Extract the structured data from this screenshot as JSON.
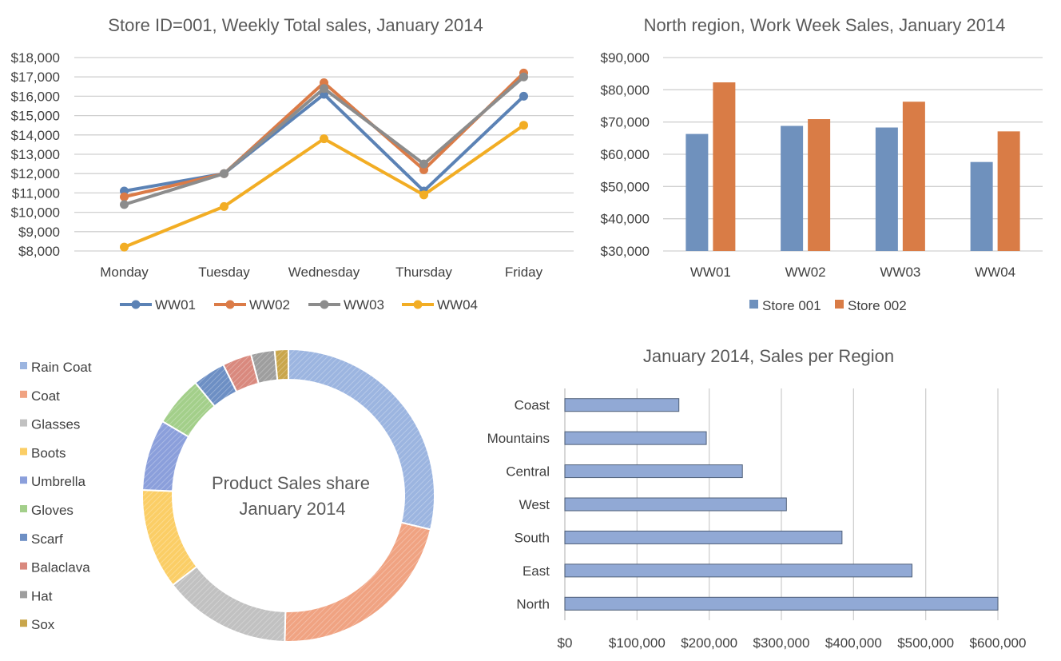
{
  "chart_data": [
    {
      "type": "line",
      "title": "Store ID=001, Weekly Total sales, January 2014",
      "categories": [
        "Monday",
        "Tuesday",
        "Wednesday",
        "Thursday",
        "Friday"
      ],
      "series": [
        {
          "name": "WW01",
          "color": "#5b82b5",
          "values": [
            11100,
            12000,
            16100,
            11100,
            16000
          ]
        },
        {
          "name": "WW02",
          "color": "#db7b47",
          "values": [
            10800,
            12000,
            16700,
            12200,
            17200
          ]
        },
        {
          "name": "WW03",
          "color": "#8c8c8c",
          "values": [
            10400,
            12000,
            16400,
            12500,
            17000
          ]
        },
        {
          "name": "WW04",
          "color": "#f2ad24",
          "values": [
            8200,
            10300,
            13800,
            10900,
            14500
          ]
        }
      ],
      "ylim": [
        8000,
        18000
      ],
      "yticks": [
        "$8,000",
        "$9,000",
        "$10,000",
        "$11,000",
        "$12,000",
        "$13,000",
        "$14,000",
        "$15,000",
        "$16,000",
        "$17,000",
        "$18,000"
      ],
      "legend": "bottom",
      "grid": true
    },
    {
      "type": "bar",
      "title": "North region, Work Week Sales, January 2014",
      "categories": [
        "WW01",
        "WW02",
        "WW03",
        "WW04"
      ],
      "series": [
        {
          "name": "Store 001",
          "color": "#6f91bd",
          "values": [
            66300,
            68800,
            68300,
            57600
          ]
        },
        {
          "name": "Store 002",
          "color": "#d97c46",
          "values": [
            82300,
            70900,
            76300,
            67100
          ]
        }
      ],
      "ylim": [
        30000,
        90000
      ],
      "yticks": [
        "$30,000",
        "$40,000",
        "$50,000",
        "$60,000",
        "$70,000",
        "$80,000",
        "$90,000"
      ],
      "legend": "bottom",
      "grid": true
    },
    {
      "type": "pie",
      "title": "Product Sales share January 2014",
      "title_lines": [
        "Product Sales share",
        "January 2014"
      ],
      "donut": true,
      "categories": [
        "Rain Coat",
        "Coat",
        "Glasses",
        "Boots",
        "Umbrella",
        "Gloves",
        "Scarf",
        "Balaclava",
        "Hat",
        "Sox"
      ],
      "values": [
        28.5,
        21.5,
        14.0,
        11.0,
        7.8,
        5.5,
        3.6,
        3.2,
        2.6,
        1.5
      ],
      "colors": [
        "#9cb5e0",
        "#f0a382",
        "#c1c1c1",
        "#fbce66",
        "#8b9fdb",
        "#a3cf8a",
        "#6d8fc4",
        "#d9897e",
        "#9e9e9e",
        "#c9a64b"
      ],
      "legend": "left"
    },
    {
      "type": "bar",
      "orientation": "horizontal",
      "title": "January 2014, Sales per Region",
      "categories": [
        "Coast",
        "Mountains",
        "Central",
        "West",
        "South",
        "East",
        "North"
      ],
      "values": [
        158000,
        196000,
        246000,
        307000,
        384000,
        481000,
        600000
      ],
      "color": "#91a9d5",
      "xlim": [
        0,
        600000
      ],
      "xticks": [
        "$0",
        "$100,000",
        "$200,000",
        "$300,000",
        "$400,000",
        "$500,000",
        "$600,000"
      ],
      "grid": true
    }
  ]
}
